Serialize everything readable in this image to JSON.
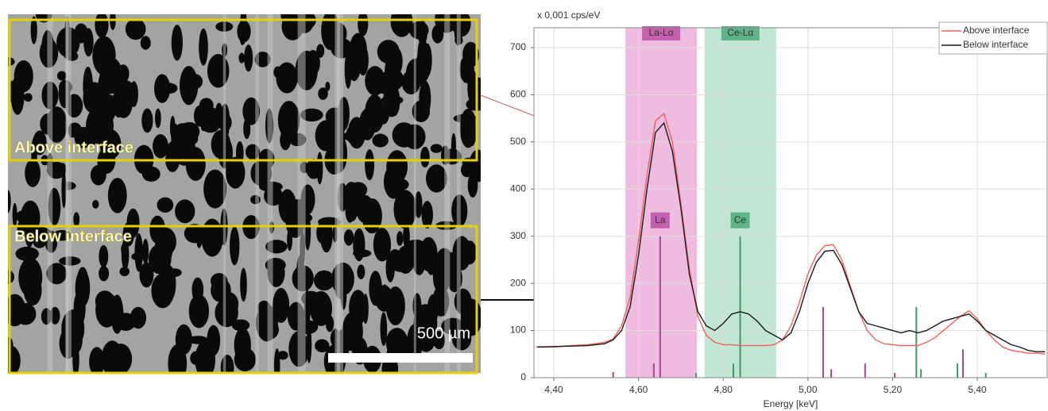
{
  "micrograph": {
    "regions": [
      {
        "label": "Above interface"
      },
      {
        "label": "Below interface"
      }
    ],
    "scale_bar": "500 µm"
  },
  "chart_data": {
    "type": "line",
    "y_label": "x 0,001 cps/eV",
    "x_label": "Energy [keV]",
    "xlim": [
      4.353,
      5.565
    ],
    "ylim": [
      0,
      742
    ],
    "xticks": [
      {
        "value": 4.4,
        "label": "4,40"
      },
      {
        "value": 4.6,
        "label": "4,60"
      },
      {
        "value": 4.8,
        "label": "4,80"
      },
      {
        "value": 5.0,
        "label": "5,00"
      },
      {
        "value": 5.2,
        "label": "5,20"
      },
      {
        "value": 5.4,
        "label": "5,40"
      }
    ],
    "yticks": [
      0,
      100,
      200,
      300,
      400,
      500,
      600,
      700
    ],
    "grid": true,
    "legend": "top-right",
    "x": [
      4.36,
      4.4,
      4.44,
      4.48,
      4.52,
      4.54,
      4.56,
      4.58,
      4.6,
      4.62,
      4.64,
      4.66,
      4.68,
      4.7,
      4.72,
      4.74,
      4.76,
      4.78,
      4.8,
      4.82,
      4.84,
      4.86,
      4.88,
      4.9,
      4.92,
      4.94,
      4.96,
      4.98,
      5.0,
      5.02,
      5.04,
      5.06,
      5.08,
      5.1,
      5.12,
      5.14,
      5.16,
      5.18,
      5.2,
      5.22,
      5.24,
      5.26,
      5.28,
      5.3,
      5.32,
      5.34,
      5.36,
      5.38,
      5.4,
      5.42,
      5.44,
      5.46,
      5.48,
      5.5,
      5.52,
      5.54,
      5.56
    ],
    "series": [
      {
        "name": "Above interface",
        "color": "#f0605a",
        "values": [
          65,
          65,
          68,
          70,
          75,
          82,
          110,
          170,
          290,
          430,
          545,
          560,
          500,
          370,
          230,
          130,
          90,
          75,
          70,
          70,
          68,
          68,
          68,
          68,
          70,
          80,
          110,
          160,
          220,
          260,
          280,
          282,
          250,
          195,
          140,
          100,
          80,
          72,
          70,
          68,
          68,
          68,
          75,
          85,
          100,
          115,
          130,
          142,
          125,
          100,
          80,
          65,
          58,
          55,
          52,
          52,
          50
        ]
      },
      {
        "name": "Below interface",
        "color": "#1a1a1a",
        "values": [
          65,
          66,
          67,
          68,
          72,
          80,
          100,
          150,
          260,
          400,
          520,
          540,
          480,
          360,
          220,
          140,
          110,
          100,
          115,
          135,
          140,
          135,
          120,
          100,
          90,
          80,
          95,
          140,
          200,
          245,
          268,
          270,
          240,
          190,
          140,
          115,
          110,
          105,
          100,
          95,
          100,
          95,
          100,
          110,
          120,
          125,
          130,
          135,
          120,
          100,
          90,
          80,
          70,
          65,
          58,
          55,
          55
        ]
      }
    ],
    "bands": [
      {
        "label": "La-Lα",
        "color": "#eab0d8",
        "label_fill": "#c55fb0",
        "xrange": [
          4.569,
          4.738
        ]
      },
      {
        "label": "Ce-Lα",
        "color": "#b6e2cb",
        "label_fill": "#5fb487",
        "xrange": [
          4.756,
          4.925
        ]
      }
    ],
    "peaks": [
      {
        "label": "La",
        "x": 4.651,
        "value": 300,
        "color": "#a0468f",
        "label_fill": "#c55fb0"
      },
      {
        "label": "Ce",
        "x": 4.84,
        "value": 300,
        "color": "#3d9a6a",
        "label_fill": "#5fb487"
      }
    ],
    "minor_lines": [
      {
        "color": "#a0468f",
        "x": [
          4.54,
          4.636,
          5.036,
          5.055,
          5.135,
          5.205,
          5.366
        ],
        "values": [
          12,
          30,
          150,
          18,
          30,
          10,
          60
        ]
      },
      {
        "color": "#3d9a6a",
        "x": [
          4.736,
          4.824,
          5.256,
          5.267,
          5.353,
          5.42
        ],
        "values": [
          10,
          30,
          150,
          18,
          30,
          10
        ]
      }
    ]
  }
}
